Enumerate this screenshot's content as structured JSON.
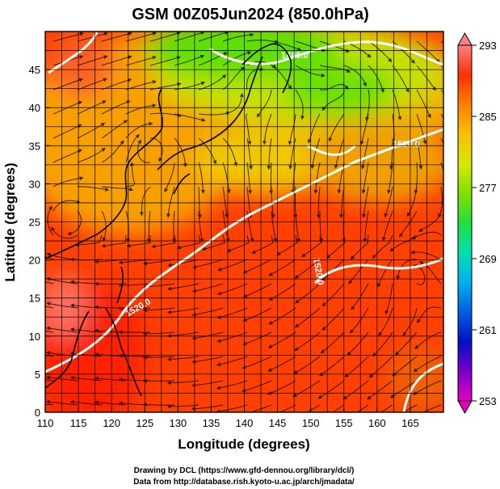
{
  "chart_data": {
    "type": "heatmap",
    "title": "GSM 00Z05Jun2024 (850.0hPa)",
    "xlabel": "Longitude (degrees)",
    "ylabel": "Latitude  (degrees)",
    "xlim": [
      110,
      170
    ],
    "ylim": [
      0,
      50
    ],
    "x_ticks": [
      "110",
      "115",
      "120",
      "125",
      "130",
      "135",
      "140",
      "145",
      "150",
      "155",
      "160",
      "165"
    ],
    "y_ticks": [
      "0",
      "5",
      "10",
      "15",
      "20",
      "25",
      "30",
      "35",
      "40",
      "45"
    ],
    "colorbar": {
      "min": 253,
      "max": 293,
      "ticks": [
        "253",
        "261",
        "269",
        "277",
        "285",
        "293"
      ],
      "colors": [
        "#e400c0",
        "#7a00c8",
        "#0010c8",
        "#0060e0",
        "#00b0f0",
        "#00e0b0",
        "#20e040",
        "#80e000",
        "#d8e800",
        "#f8c000",
        "#ff8000",
        "#ff3000",
        "#ff8080"
      ]
    },
    "contour_labels": [
      "1480.0",
      "1520.0",
      "1520.0",
      "1520.0"
    ],
    "grid": true,
    "overlays": [
      "temperature shading",
      "streamlines",
      "geopotential height contours",
      "coastlines"
    ]
  },
  "credits": {
    "line1": "Drawing by DCL (https://www.gfd-dennou.org/library/dcl/)",
    "line2": "Data from http://database.rish.kyoto-u.ac.jp/arch/jmadata/"
  }
}
